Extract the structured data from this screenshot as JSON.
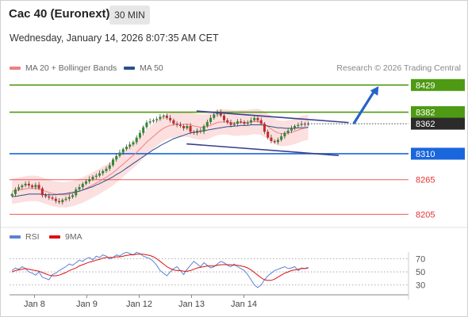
{
  "header": {
    "title": "Cac 40 (Euronext)",
    "timeframe": "30 MIN",
    "datetime": "Wednesday, January 14, 2026 8:07:35 AM CET"
  },
  "legend": {
    "ma20_label": "MA 20 + Bollinger Bands",
    "ma20_color": "#f08080",
    "ma50_label": "MA 50",
    "ma50_color": "#2c4f8a",
    "credit": "Research © 2026 Trading Central"
  },
  "rsi_legend": {
    "rsi_label": "RSI",
    "rsi_color": "#5b82d6",
    "ma_label": "9MA",
    "ma_color": "#dd1111"
  },
  "chart_data": [
    {
      "type": "candlestick",
      "title": "",
      "x_ticks": [
        "Jan 8",
        "Jan 9",
        "Jan 12",
        "Jan 13",
        "Jan 14"
      ],
      "ylim": [
        8185,
        8450
      ],
      "price_levels": [
        {
          "label": "8429",
          "value": 8429,
          "color": "#4f9a14",
          "kind": "resistance"
        },
        {
          "label": "8382",
          "value": 8382,
          "color": "#4f9a14",
          "kind": "resistance"
        },
        {
          "label": "8362",
          "value": 8362,
          "color": "#2b2b2b",
          "kind": "last"
        },
        {
          "label": "8310",
          "value": 8310,
          "color": "#1a66dd",
          "kind": "pivot"
        },
        {
          "label": "8265",
          "value": 8265,
          "color": "#e33434",
          "kind": "support"
        },
        {
          "label": "8205",
          "value": 8205,
          "color": "#e33434",
          "kind": "support"
        }
      ],
      "trend_channel": {
        "upper": [
          [
            7.5,
            8384
          ],
          [
            13.6,
            8364
          ]
        ],
        "lower": [
          [
            7.1,
            8327
          ],
          [
            13.2,
            8307
          ]
        ]
      },
      "target_arrow": {
        "from": [
          13.8,
          8362
        ],
        "to": [
          14.8,
          8427
        ]
      },
      "close_series": [
        8240,
        8248,
        8252,
        8255,
        8258,
        8255,
        8252,
        8256,
        8250,
        8238,
        8236,
        8234,
        8232,
        8228,
        8226,
        8230,
        8232,
        8235,
        8238,
        8248,
        8252,
        8258,
        8262,
        8266,
        8270,
        8272,
        8276,
        8280,
        8284,
        8290,
        8300,
        8306,
        8312,
        8318,
        8322,
        8326,
        8330,
        8338,
        8346,
        8356,
        8364,
        8366,
        8368,
        8370,
        8374,
        8376,
        8372,
        8368,
        8362,
        8360,
        8358,
        8354,
        8358,
        8348,
        8346,
        8350,
        8348,
        8358,
        8365,
        8372,
        8378,
        8382,
        8376,
        8368,
        8364,
        8360,
        8362,
        8366,
        8365,
        8362,
        8364,
        8368,
        8372,
        8368,
        8362,
        8348,
        8338,
        8332,
        8330,
        8334,
        8340,
        8346,
        8350,
        8354,
        8358,
        8360,
        8362,
        8361,
        8362
      ],
      "ma20": [
        8245,
        8246,
        8247,
        8248,
        8249,
        8250,
        8250,
        8250,
        8249,
        8247,
        8245,
        8243,
        8241,
        8240,
        8239,
        8239,
        8239,
        8240,
        8241,
        8243,
        8245,
        8247,
        8250,
        8253,
        8256,
        8259,
        8262,
        8266,
        8269,
        8273,
        8277,
        8282,
        8287,
        8292,
        8297,
        8302,
        8307,
        8312,
        8318,
        8324,
        8330,
        8335,
        8340,
        8345,
        8350,
        8354,
        8357,
        8359,
        8360,
        8361,
        8361,
        8361,
        8361,
        8360,
        8358,
        8357,
        8356,
        8356,
        8357,
        8359,
        8362,
        8364,
        8365,
        8365,
        8365,
        8364,
        8363,
        8363,
        8364,
        8364,
        8364,
        8365,
        8366,
        8366,
        8364,
        8361,
        8357,
        8353,
        8349,
        8346,
        8345,
        8345,
        8346,
        8347,
        8349,
        8351,
        8353,
        8355,
        8356
      ],
      "ma50": [
        8236,
        8236,
        8237,
        8238,
        8239,
        8240,
        8240,
        8240,
        8240,
        8240,
        8239,
        8239,
        8239,
        8239,
        8240,
        8240,
        8241,
        8242,
        8243,
        8244,
        8245,
        8247,
        8249,
        8251,
        8253,
        8256,
        8258,
        8261,
        8264,
        8267,
        8270,
        8274,
        8277,
        8281,
        8285,
        8289,
        8293,
        8297,
        8301,
        8305,
        8309,
        8313,
        8317,
        8320,
        8324,
        8327,
        8330,
        8333,
        8336,
        8338,
        8340,
        8342,
        8344,
        8346,
        8347,
        8348,
        8349,
        8350,
        8351,
        8352,
        8353,
        8354,
        8355,
        8356,
        8357,
        8357,
        8358,
        8358,
        8359,
        8359,
        8359,
        8360,
        8360,
        8360,
        8360,
        8359,
        8358,
        8357,
        8356,
        8355,
        8355,
        8354,
        8354,
        8354,
        8354,
        8355,
        8355,
        8355,
        8356
      ],
      "bollinger_width": 22
    },
    {
      "type": "line",
      "title": "",
      "y_ticks": [
        "70",
        "50",
        "30"
      ],
      "ylim": [
        15,
        90
      ],
      "series": [
        {
          "name": "RSI",
          "values": [
            52,
            56,
            54,
            58,
            55,
            50,
            48,
            45,
            50,
            42,
            40,
            38,
            46,
            48,
            52,
            55,
            58,
            62,
            60,
            64,
            68,
            66,
            70,
            72,
            68,
            74,
            72,
            76,
            74,
            70,
            72,
            76,
            74,
            78,
            80,
            78,
            76,
            80,
            78,
            74,
            72,
            70,
            66,
            60,
            52,
            48,
            44,
            50,
            55,
            58,
            52,
            46,
            54,
            60,
            66,
            62,
            58,
            64,
            60,
            56,
            58,
            62,
            66,
            64,
            60,
            58,
            62,
            58,
            55,
            52,
            46,
            38,
            30,
            26,
            30,
            38,
            44,
            48,
            52,
            54,
            56,
            58,
            55,
            56,
            58,
            52,
            56,
            55,
            57
          ]
        },
        {
          "name": "9MA",
          "values": [
            50,
            52,
            53,
            54,
            55,
            54,
            53,
            52,
            51,
            49,
            47,
            45,
            44,
            44,
            45,
            47,
            49,
            52,
            54,
            56,
            59,
            61,
            63,
            65,
            66,
            68,
            69,
            71,
            72,
            72,
            72,
            73,
            73,
            74,
            75,
            76,
            76,
            77,
            77,
            77,
            76,
            75,
            73,
            70,
            66,
            62,
            58,
            55,
            53,
            52,
            52,
            51,
            51,
            52,
            54,
            56,
            57,
            58,
            59,
            59,
            59,
            60,
            61,
            61,
            61,
            61,
            60,
            60,
            59,
            58,
            56,
            53,
            49,
            45,
            41,
            38,
            37,
            37,
            39,
            42,
            45,
            48,
            50,
            52,
            53,
            54,
            55,
            55,
            56
          ]
        }
      ]
    }
  ]
}
